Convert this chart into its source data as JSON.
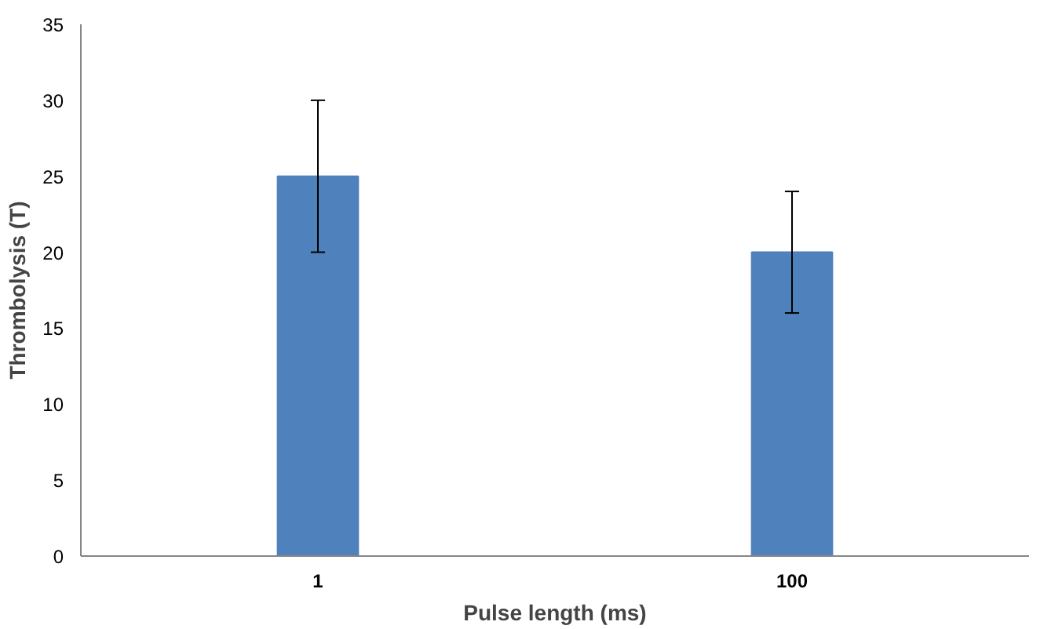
{
  "chart_data": {
    "type": "bar",
    "xlabel": "Pulse length (ms)",
    "ylabel": "Thrombolysis (T)",
    "categories": [
      "1",
      "100"
    ],
    "values": [
      25,
      20
    ],
    "errors": [
      5,
      4
    ],
    "color": "#4f81bd",
    "ylim": [
      0,
      35
    ],
    "yticks": [
      0,
      5,
      10,
      15,
      20,
      25,
      30,
      35
    ],
    "grid": false
  }
}
